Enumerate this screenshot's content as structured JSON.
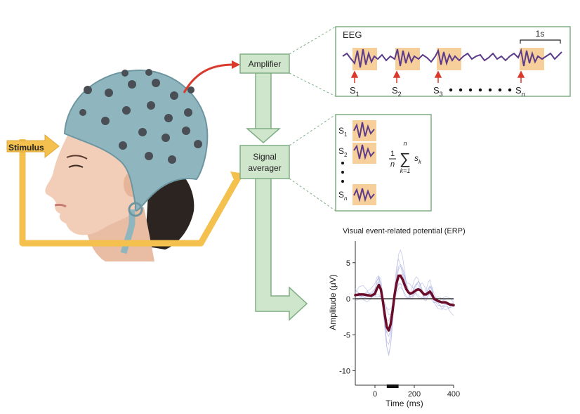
{
  "stimulus_label": "Stimulus",
  "amplifier_label": "Amplifier",
  "averager_label_1": "Signal",
  "averager_label_2": "averager",
  "eeg_panel": {
    "title": "EEG",
    "scale_label": "1s",
    "markers": [
      {
        "base": "S",
        "sub": "1"
      },
      {
        "base": "S",
        "sub": "2"
      },
      {
        "base": "S",
        "sub": "3"
      },
      {
        "base": "S",
        "sub": "n"
      }
    ]
  },
  "avg_panel": {
    "rows": [
      {
        "base": "S",
        "sub": "1"
      },
      {
        "base": "S",
        "sub": "2"
      },
      {
        "base": "S",
        "sub": "n"
      }
    ],
    "formula": {
      "num": "1",
      "den": "n",
      "upper": "n",
      "sigma": "∑",
      "lower": "k=1",
      "term": "s",
      "term_sub": "k"
    }
  },
  "colors": {
    "cap": "#8fb6bf",
    "electrode": "#4a4f55",
    "skin": "#f2cdb7",
    "hair": "#2b2420",
    "box_fill": "#cfe5cc",
    "box_stroke": "#7fae84",
    "yellow_arrow": "#f4c04e",
    "red_arrow": "#d93a2b",
    "eeg_trace": "#5b3b8a",
    "stim_box": "#f7cf9a",
    "erp_mean": "#6b0d2a",
    "erp_trials": "#b8bde6"
  },
  "chart_data": {
    "type": "line",
    "title": "Visual event-related potential (ERP)",
    "xlabel": "Time (ms)",
    "ylabel": "Amplitude (μV)",
    "xlim": [
      -100,
      400
    ],
    "ylim": [
      -12,
      8
    ],
    "xticks": [
      0,
      200,
      400
    ],
    "yticks": [
      5,
      0,
      -5,
      -10
    ],
    "stimulus_bar": [
      60,
      120
    ],
    "series": [
      {
        "x": [
          -100,
          -80,
          -60,
          -40,
          -20,
          0,
          10,
          20,
          30,
          40,
          50,
          60,
          70,
          80,
          90,
          100,
          110,
          120,
          130,
          140,
          150,
          160,
          170,
          180,
          190,
          200,
          210,
          220,
          230,
          240,
          250,
          260,
          270,
          280,
          290,
          300,
          320,
          340,
          360,
          380,
          400
        ],
        "values": [
          0.5,
          0.6,
          0.6,
          0.5,
          0.4,
          0.7,
          1.4,
          1.9,
          1.3,
          -0.3,
          -2.2,
          -3.9,
          -4.4,
          -3.5,
          -1.6,
          0.6,
          2.2,
          3.2,
          3.2,
          2.7,
          2.0,
          1.3,
          0.9,
          0.7,
          0.8,
          1.0,
          1.2,
          1.3,
          1.2,
          0.9,
          0.6,
          0.6,
          0.8,
          1.0,
          0.6,
          0.0,
          -0.3,
          -0.5,
          -0.5,
          -0.8,
          -0.9
        ]
      }
    ]
  }
}
